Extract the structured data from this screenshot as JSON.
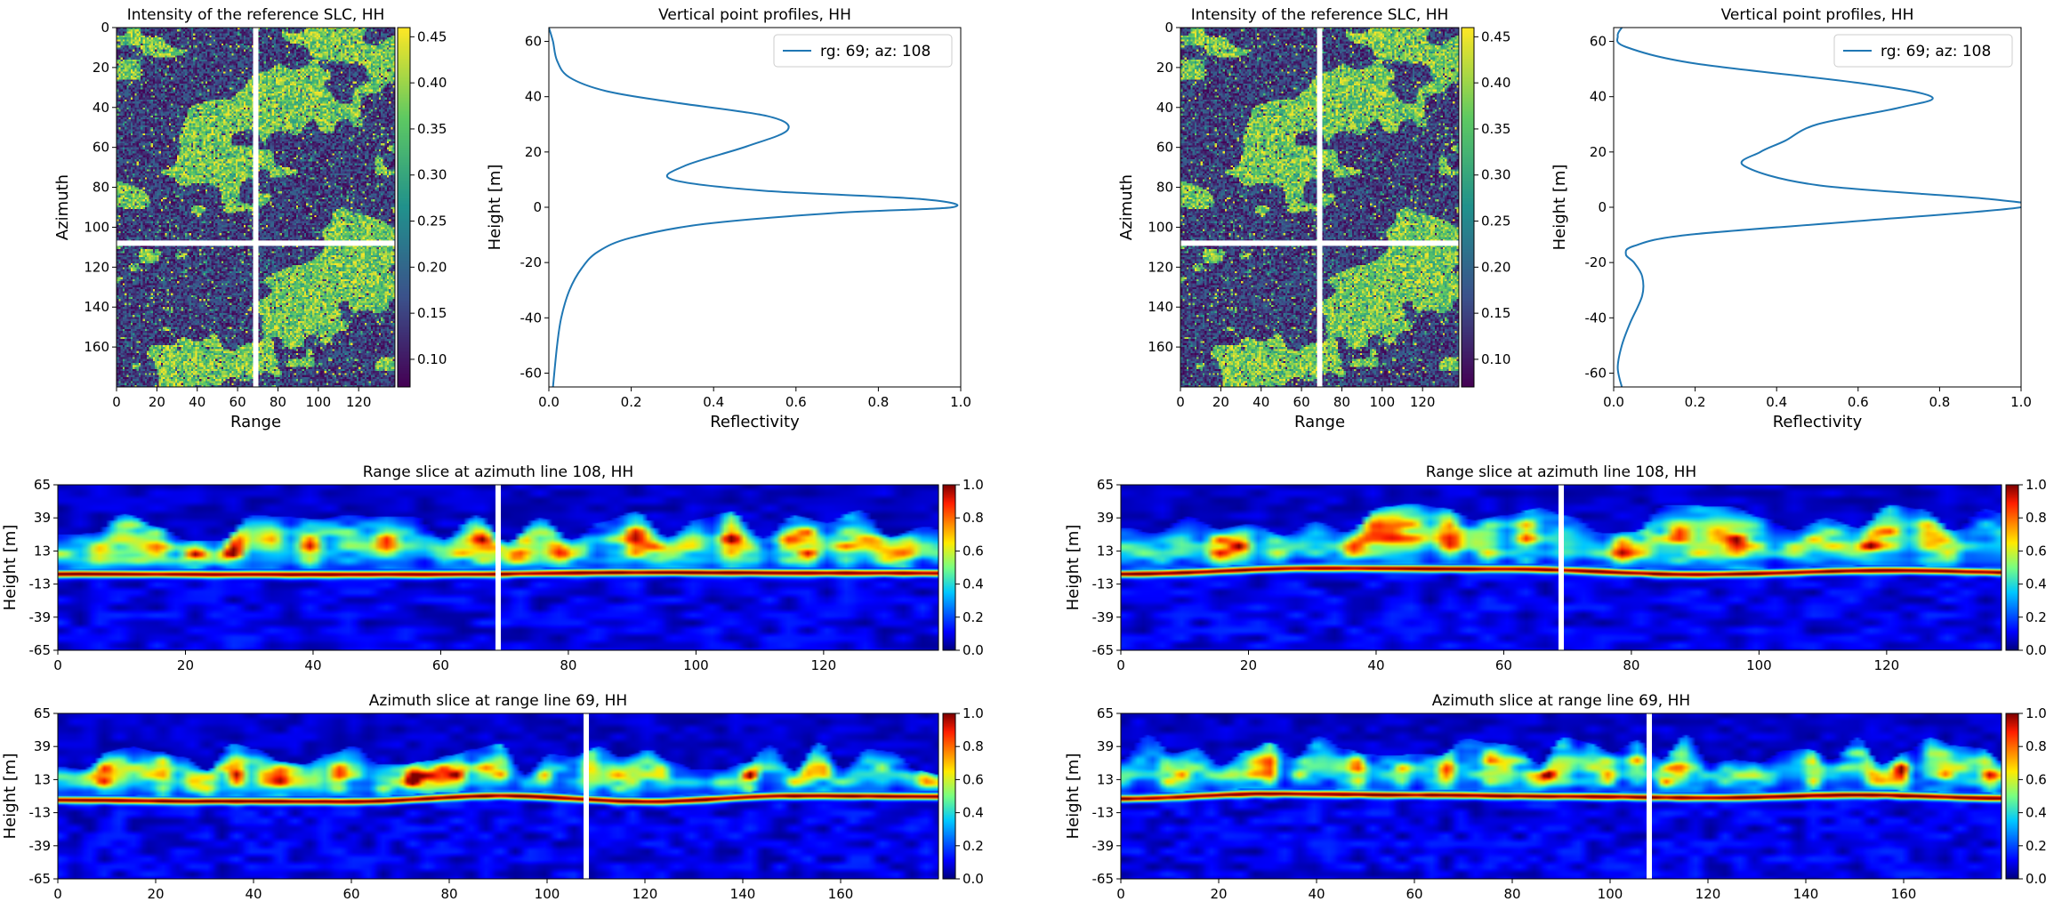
{
  "figure": {
    "background": "#ffffff",
    "colormaps": {
      "intensity": "viridis",
      "tomogram": "jet"
    },
    "profile_line_color": "#1f77b4",
    "marker_line_color": "#ffffff",
    "panel_groups": [
      "left",
      "right"
    ]
  },
  "chart_data": [
    {
      "id": "left-intensity",
      "type": "heatmap",
      "title": "Intensity of the reference SLC, HH",
      "xlabel": "Range",
      "ylabel": "Azimuth",
      "xlim": [
        0,
        138
      ],
      "ylim": [
        180,
        0
      ],
      "xticks": [
        0,
        20,
        40,
        60,
        80,
        100,
        120
      ],
      "yticks": [
        0,
        20,
        40,
        60,
        80,
        100,
        120,
        140,
        160
      ],
      "colorbar": {
        "ticks": [
          "0.10",
          "0.15",
          "0.20",
          "0.25",
          "0.30",
          "0.35",
          "0.40",
          "0.45"
        ],
        "range": [
          0.07,
          0.46
        ]
      },
      "crosshair": {
        "range": 69,
        "azimuth": 108
      },
      "seed": 11
    },
    {
      "id": "left-profile",
      "type": "line",
      "title": "Vertical point profiles, HH",
      "xlabel": "Reflectivity",
      "ylabel": "Height [m]",
      "xlim": [
        0,
        1
      ],
      "ylim": [
        -65,
        65
      ],
      "xticks": [
        "0.0",
        "0.2",
        "0.4",
        "0.6",
        "0.8",
        "1.0"
      ],
      "yticks": [
        -60,
        -40,
        -20,
        0,
        20,
        40,
        60
      ],
      "legend": "top-right",
      "series": [
        {
          "name": "rg: 69; az: 108",
          "x": [
            0.01,
            0.02,
            0.03,
            0.05,
            0.08,
            0.12,
            0.2,
            0.38,
            0.7,
            0.98,
            0.9,
            0.52,
            0.3,
            0.33,
            0.48,
            0.58,
            0.53,
            0.3,
            0.14,
            0.05,
            0.02,
            0.01,
            0.0
          ],
          "y": [
            -65,
            -50,
            -40,
            -30,
            -22,
            -16,
            -11,
            -6,
            -2,
            0,
            3,
            6,
            10,
            15,
            22,
            28,
            33,
            38,
            42,
            47,
            53,
            60,
            65
          ]
        }
      ]
    },
    {
      "id": "right-intensity",
      "type": "heatmap",
      "title": "Intensity of the reference SLC, HH",
      "xlabel": "Range",
      "ylabel": "Azimuth",
      "xlim": [
        0,
        138
      ],
      "ylim": [
        180,
        0
      ],
      "xticks": [
        0,
        20,
        40,
        60,
        80,
        100,
        120
      ],
      "yticks": [
        0,
        20,
        40,
        60,
        80,
        100,
        120,
        140,
        160
      ],
      "colorbar": {
        "ticks": [
          "0.10",
          "0.15",
          "0.20",
          "0.25",
          "0.30",
          "0.35",
          "0.40",
          "0.45"
        ],
        "range": [
          0.07,
          0.46
        ]
      },
      "crosshair": {
        "range": 69,
        "azimuth": 108
      },
      "seed": 11
    },
    {
      "id": "right-profile",
      "type": "line",
      "title": "Vertical point profiles, HH",
      "xlabel": "Reflectivity",
      "ylabel": "Height [m]",
      "xlim": [
        0,
        1
      ],
      "ylim": [
        -65,
        65
      ],
      "xticks": [
        "0.0",
        "0.2",
        "0.4",
        "0.6",
        "0.8",
        "1.0"
      ],
      "yticks": [
        -60,
        -40,
        -20,
        0,
        20,
        40,
        60
      ],
      "legend": "top-right",
      "series": [
        {
          "name": "rg: 69; az: 108",
          "x": [
            0.02,
            0.01,
            0.02,
            0.04,
            0.07,
            0.07,
            0.05,
            0.03,
            0.05,
            0.18,
            0.6,
            1.0,
            0.92,
            0.5,
            0.32,
            0.36,
            0.42,
            0.5,
            0.7,
            0.78,
            0.6,
            0.2,
            0.03,
            0.01,
            0.02
          ],
          "y": [
            -65,
            -58,
            -50,
            -42,
            -32,
            -25,
            -20,
            -17,
            -14,
            -10,
            -5,
            0,
            3,
            8,
            15,
            20,
            24,
            30,
            36,
            40,
            45,
            52,
            58,
            62,
            65
          ]
        }
      ]
    },
    {
      "id": "left-range-slice",
      "type": "heatmap",
      "title": "Range slice at azimuth line 108, HH",
      "ylabel": "Height [m]",
      "xlim": [
        0,
        138
      ],
      "ylim": [
        -65,
        65
      ],
      "xticks": [
        0,
        20,
        40,
        60,
        80,
        100,
        120
      ],
      "yticks": [
        65,
        39,
        13,
        -13,
        -39,
        -65
      ],
      "colorbar": {
        "ticks": [
          "0.0",
          "0.2",
          "0.4",
          "0.6",
          "0.8",
          "1.0"
        ],
        "range": [
          0,
          1
        ]
      },
      "marker": 69,
      "ground_height": -3,
      "canopy_height": 25,
      "seed": 21
    },
    {
      "id": "left-azimuth-slice",
      "type": "heatmap",
      "title": "Azimuth slice at range line 69, HH",
      "ylabel": "Height [m]",
      "xlim": [
        0,
        180
      ],
      "ylim": [
        -65,
        65
      ],
      "xticks": [
        0,
        20,
        40,
        60,
        80,
        100,
        120,
        140,
        160
      ],
      "yticks": [
        65,
        39,
        13,
        -13,
        -39,
        -65
      ],
      "colorbar": {
        "ticks": [
          "0.0",
          "0.2",
          "0.4",
          "0.6",
          "0.8",
          "1.0"
        ],
        "range": [
          0,
          1
        ]
      },
      "marker": 108,
      "ground_height": -1,
      "canopy_height": 22,
      "seed": 31
    },
    {
      "id": "right-range-slice",
      "type": "heatmap",
      "title": "Range slice at azimuth line 108, HH",
      "ylabel": "Height [m]",
      "xlim": [
        0,
        138
      ],
      "ylim": [
        -65,
        65
      ],
      "xticks": [
        0,
        20,
        40,
        60,
        80,
        100,
        120
      ],
      "yticks": [
        65,
        39,
        13,
        -13,
        -39,
        -65
      ],
      "colorbar": {
        "ticks": [
          "0.0",
          "0.2",
          "0.4",
          "0.6",
          "0.8",
          "1.0"
        ],
        "range": [
          0,
          1
        ]
      },
      "marker": 69,
      "ground_height": -3,
      "canopy_height": 30,
      "seed": 41
    },
    {
      "id": "right-azimuth-slice",
      "type": "heatmap",
      "title": "Azimuth slice at range line 69, HH",
      "ylabel": "Height [m]",
      "xlim": [
        0,
        180
      ],
      "ylim": [
        -65,
        65
      ],
      "xticks": [
        0,
        20,
        40,
        60,
        80,
        100,
        120,
        140,
        160
      ],
      "yticks": [
        65,
        39,
        13,
        -13,
        -39,
        -65
      ],
      "colorbar": {
        "ticks": [
          "0.0",
          "0.2",
          "0.4",
          "0.6",
          "0.8",
          "1.0"
        ],
        "range": [
          0,
          1
        ]
      },
      "marker": 108,
      "ground_height": 0,
      "canopy_height": 28,
      "seed": 51
    }
  ]
}
